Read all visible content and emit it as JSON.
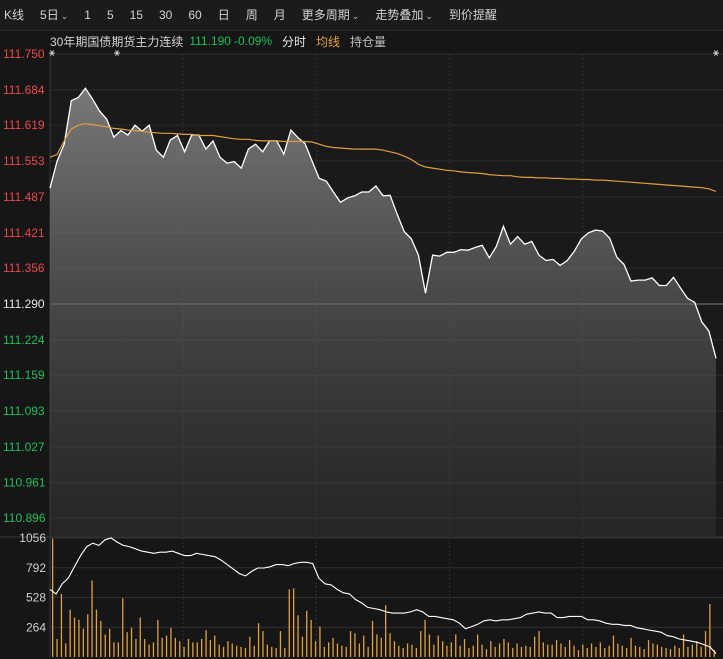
{
  "toolbar": {
    "items": [
      {
        "label": "K线",
        "dropdown": false
      },
      {
        "label": "5日",
        "dropdown": true
      },
      {
        "label": "1",
        "dropdown": false
      },
      {
        "label": "5",
        "dropdown": false
      },
      {
        "label": "15",
        "dropdown": false
      },
      {
        "label": "30",
        "dropdown": false
      },
      {
        "label": "60",
        "dropdown": false
      },
      {
        "label": "日",
        "dropdown": false
      },
      {
        "label": "周",
        "dropdown": false
      },
      {
        "label": "月",
        "dropdown": false
      },
      {
        "label": "更多周期",
        "dropdown": true
      },
      {
        "label": "走势叠加",
        "dropdown": true
      },
      {
        "label": "到价提醒",
        "dropdown": false
      }
    ],
    "dropdown_glyph": "⌄"
  },
  "info": {
    "instrument": "30年期国债期货主力连续",
    "price": "111.190",
    "change": "-0.09%",
    "tab_intraday": "分时",
    "legend_avg": "均线",
    "legend_oi": "持仓量"
  },
  "colors": {
    "up": "#e84a4a",
    "down": "#1fbf5b",
    "neutral": "#e6e6e6",
    "price_line": "#ffffff",
    "avg_line": "#e0a040",
    "volume_bar": "#e0a040",
    "grid": "#2e2e2e",
    "background": "#161616"
  },
  "chart_data": [
    {
      "type": "area",
      "name": "price",
      "reference_price": 111.29,
      "ylim": [
        110.863,
        111.75
      ],
      "y_ticks": [
        "111.750",
        "111.684",
        "111.619",
        "111.553",
        "111.487",
        "111.421",
        "111.356",
        "111.290",
        "111.224",
        "111.159",
        "111.093",
        "111.027",
        "110.961",
        "110.896"
      ],
      "days": 5,
      "price": [
        111.503,
        111.553,
        111.584,
        111.664,
        111.67,
        111.687,
        111.667,
        111.645,
        111.63,
        111.597,
        111.609,
        111.601,
        111.619,
        111.608,
        111.619,
        111.573,
        111.56,
        111.592,
        111.6,
        111.57,
        111.601,
        111.601,
        111.575,
        111.59,
        111.56,
        111.549,
        111.552,
        111.54,
        111.575,
        111.584,
        111.57,
        111.59,
        111.59,
        111.566,
        111.61,
        111.596,
        111.585,
        111.553,
        111.521,
        111.516,
        111.496,
        111.477,
        111.485,
        111.489,
        111.496,
        111.496,
        111.507,
        111.489,
        111.49,
        111.455,
        111.423,
        111.41,
        111.38,
        111.31,
        111.38,
        111.378,
        111.385,
        111.385,
        111.39,
        111.389,
        111.394,
        111.398,
        111.375,
        111.396,
        111.433,
        111.4,
        111.414,
        111.4,
        111.405,
        111.38,
        111.37,
        111.372,
        111.361,
        111.37,
        111.387,
        111.41,
        111.421,
        111.426,
        111.424,
        111.411,
        111.376,
        111.363,
        111.332,
        111.334,
        111.334,
        111.338,
        111.324,
        111.324,
        111.339,
        111.319,
        111.3,
        111.293,
        111.257,
        111.24,
        111.19
      ],
      "avg": [
        111.56,
        111.565,
        111.59,
        111.612,
        111.619,
        111.622,
        111.62,
        111.618,
        111.616,
        111.613,
        111.612,
        111.61,
        111.609,
        111.608,
        111.606,
        111.605,
        111.604,
        111.604,
        111.603,
        111.602,
        111.602,
        111.6,
        111.6,
        111.6,
        111.598,
        111.596,
        111.594,
        111.593,
        111.593,
        111.591,
        111.59,
        111.59,
        111.59,
        111.589,
        111.589,
        111.589,
        111.589,
        111.588,
        111.584,
        111.58,
        111.578,
        111.577,
        111.576,
        111.575,
        111.575,
        111.575,
        111.575,
        111.573,
        111.57,
        111.567,
        111.562,
        111.556,
        111.547,
        111.542,
        111.54,
        111.538,
        111.536,
        111.535,
        111.533,
        111.532,
        111.531,
        111.53,
        111.528,
        111.527,
        111.526,
        111.526,
        111.524,
        111.523,
        111.523,
        111.522,
        111.522,
        111.521,
        111.521,
        111.52,
        111.52,
        111.519,
        111.519,
        111.518,
        111.518,
        111.517,
        111.516,
        111.515,
        111.514,
        111.513,
        111.512,
        111.511,
        111.51,
        111.509,
        111.508,
        111.507,
        111.506,
        111.505,
        111.504,
        111.502,
        111.497
      ]
    },
    {
      "type": "bar",
      "name": "volume",
      "ylim": [
        0,
        1056
      ],
      "y_ticks": [
        "1056",
        "792",
        "528",
        "264"
      ],
      "bars": [
        1050,
        160,
        560,
        120,
        420,
        350,
        330,
        250,
        380,
        680,
        420,
        320,
        200,
        250,
        130,
        130,
        520,
        220,
        260,
        160,
        350,
        160,
        110,
        130,
        330,
        170,
        190,
        260,
        170,
        140,
        90,
        160,
        130,
        130,
        160,
        240,
        150,
        190,
        110,
        90,
        140,
        120,
        100,
        90,
        80,
        180,
        100,
        300,
        230,
        110,
        90,
        80,
        230,
        80,
        600,
        610,
        370,
        180,
        410,
        330,
        140,
        270,
        90,
        130,
        170,
        120,
        100,
        90,
        230,
        210,
        120,
        190,
        90,
        320,
        200,
        170,
        460,
        210,
        140,
        100,
        80,
        120,
        110,
        80,
        230,
        330,
        200,
        110,
        190,
        140,
        100,
        130,
        200,
        100,
        160,
        80,
        100,
        200,
        110,
        70,
        140,
        90,
        120,
        160,
        130,
        80,
        120,
        90,
        100,
        90,
        180,
        230,
        130,
        110,
        110,
        150,
        120,
        90,
        150,
        100,
        60,
        110,
        80,
        120,
        90,
        130,
        80,
        100,
        190,
        120,
        100,
        80,
        170,
        100,
        90,
        70,
        150,
        120,
        110,
        90,
        80,
        70,
        100,
        80,
        200,
        90,
        110,
        140,
        90,
        230,
        470,
        60
      ],
      "open_interest_line": [
        600,
        560,
        650,
        700,
        800,
        900,
        980,
        1010,
        990,
        1040,
        1056,
        1020,
        990,
        980,
        960,
        940,
        930,
        920,
        930,
        930,
        940,
        920,
        900,
        900,
        920,
        910,
        900,
        890,
        860,
        820,
        780,
        740,
        720,
        760,
        790,
        790,
        800,
        820,
        820,
        810,
        830,
        840,
        840,
        830,
        700,
        650,
        640,
        600,
        570,
        560,
        510,
        480,
        440,
        430,
        420,
        400,
        390,
        390,
        390,
        400,
        420,
        400,
        360,
        360,
        350,
        340,
        330,
        300,
        250,
        270,
        290,
        320,
        330,
        320,
        330,
        330,
        340,
        350,
        380,
        390,
        400,
        390,
        390,
        350,
        350,
        360,
        360,
        360,
        330,
        330,
        320,
        300,
        290,
        290,
        280,
        280,
        260,
        250,
        240,
        230,
        220,
        190,
        180,
        160,
        150,
        140,
        130,
        110,
        90,
        30
      ]
    }
  ]
}
